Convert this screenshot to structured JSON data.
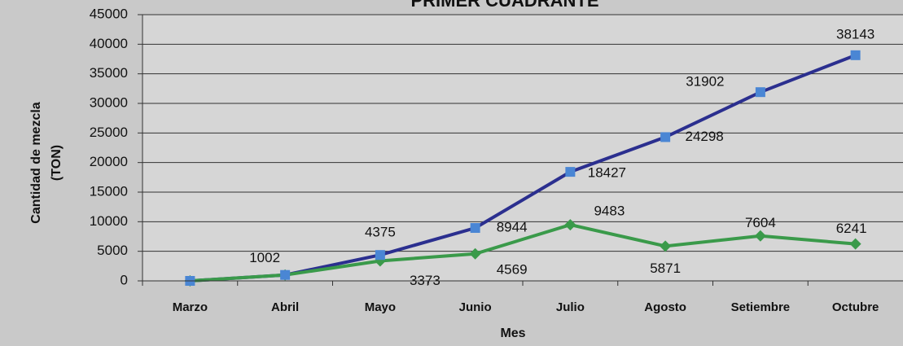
{
  "chart_data": {
    "type": "line",
    "title": "PRIMER CUADRANTE",
    "x_label": "Mes",
    "y_label": [
      "Cantidad de mezcla",
      "(TON)"
    ],
    "categories": [
      "Marzo",
      "Abril",
      "Mayo",
      "Junio",
      "Julio",
      "Agosto",
      "Setiembre",
      "Octubre"
    ],
    "series": [
      {
        "color": "#2b2f8f",
        "marker": "square",
        "marker_color": "#4a86d4",
        "values": [
          0,
          1002,
          4375,
          8944,
          18427,
          24298,
          31902,
          38143
        ]
      },
      {
        "color": "#3a9a4a",
        "marker": "diamond",
        "marker_color": "#3a9a4a",
        "values": [
          0,
          1000,
          3373,
          4569,
          9483,
          5871,
          7604,
          6241
        ]
      }
    ],
    "ylim": [
      0,
      45000
    ],
    "yticks": [
      0,
      5000,
      10000,
      15000,
      20000,
      25000,
      30000,
      35000,
      40000,
      45000
    ],
    "grid": true
  }
}
